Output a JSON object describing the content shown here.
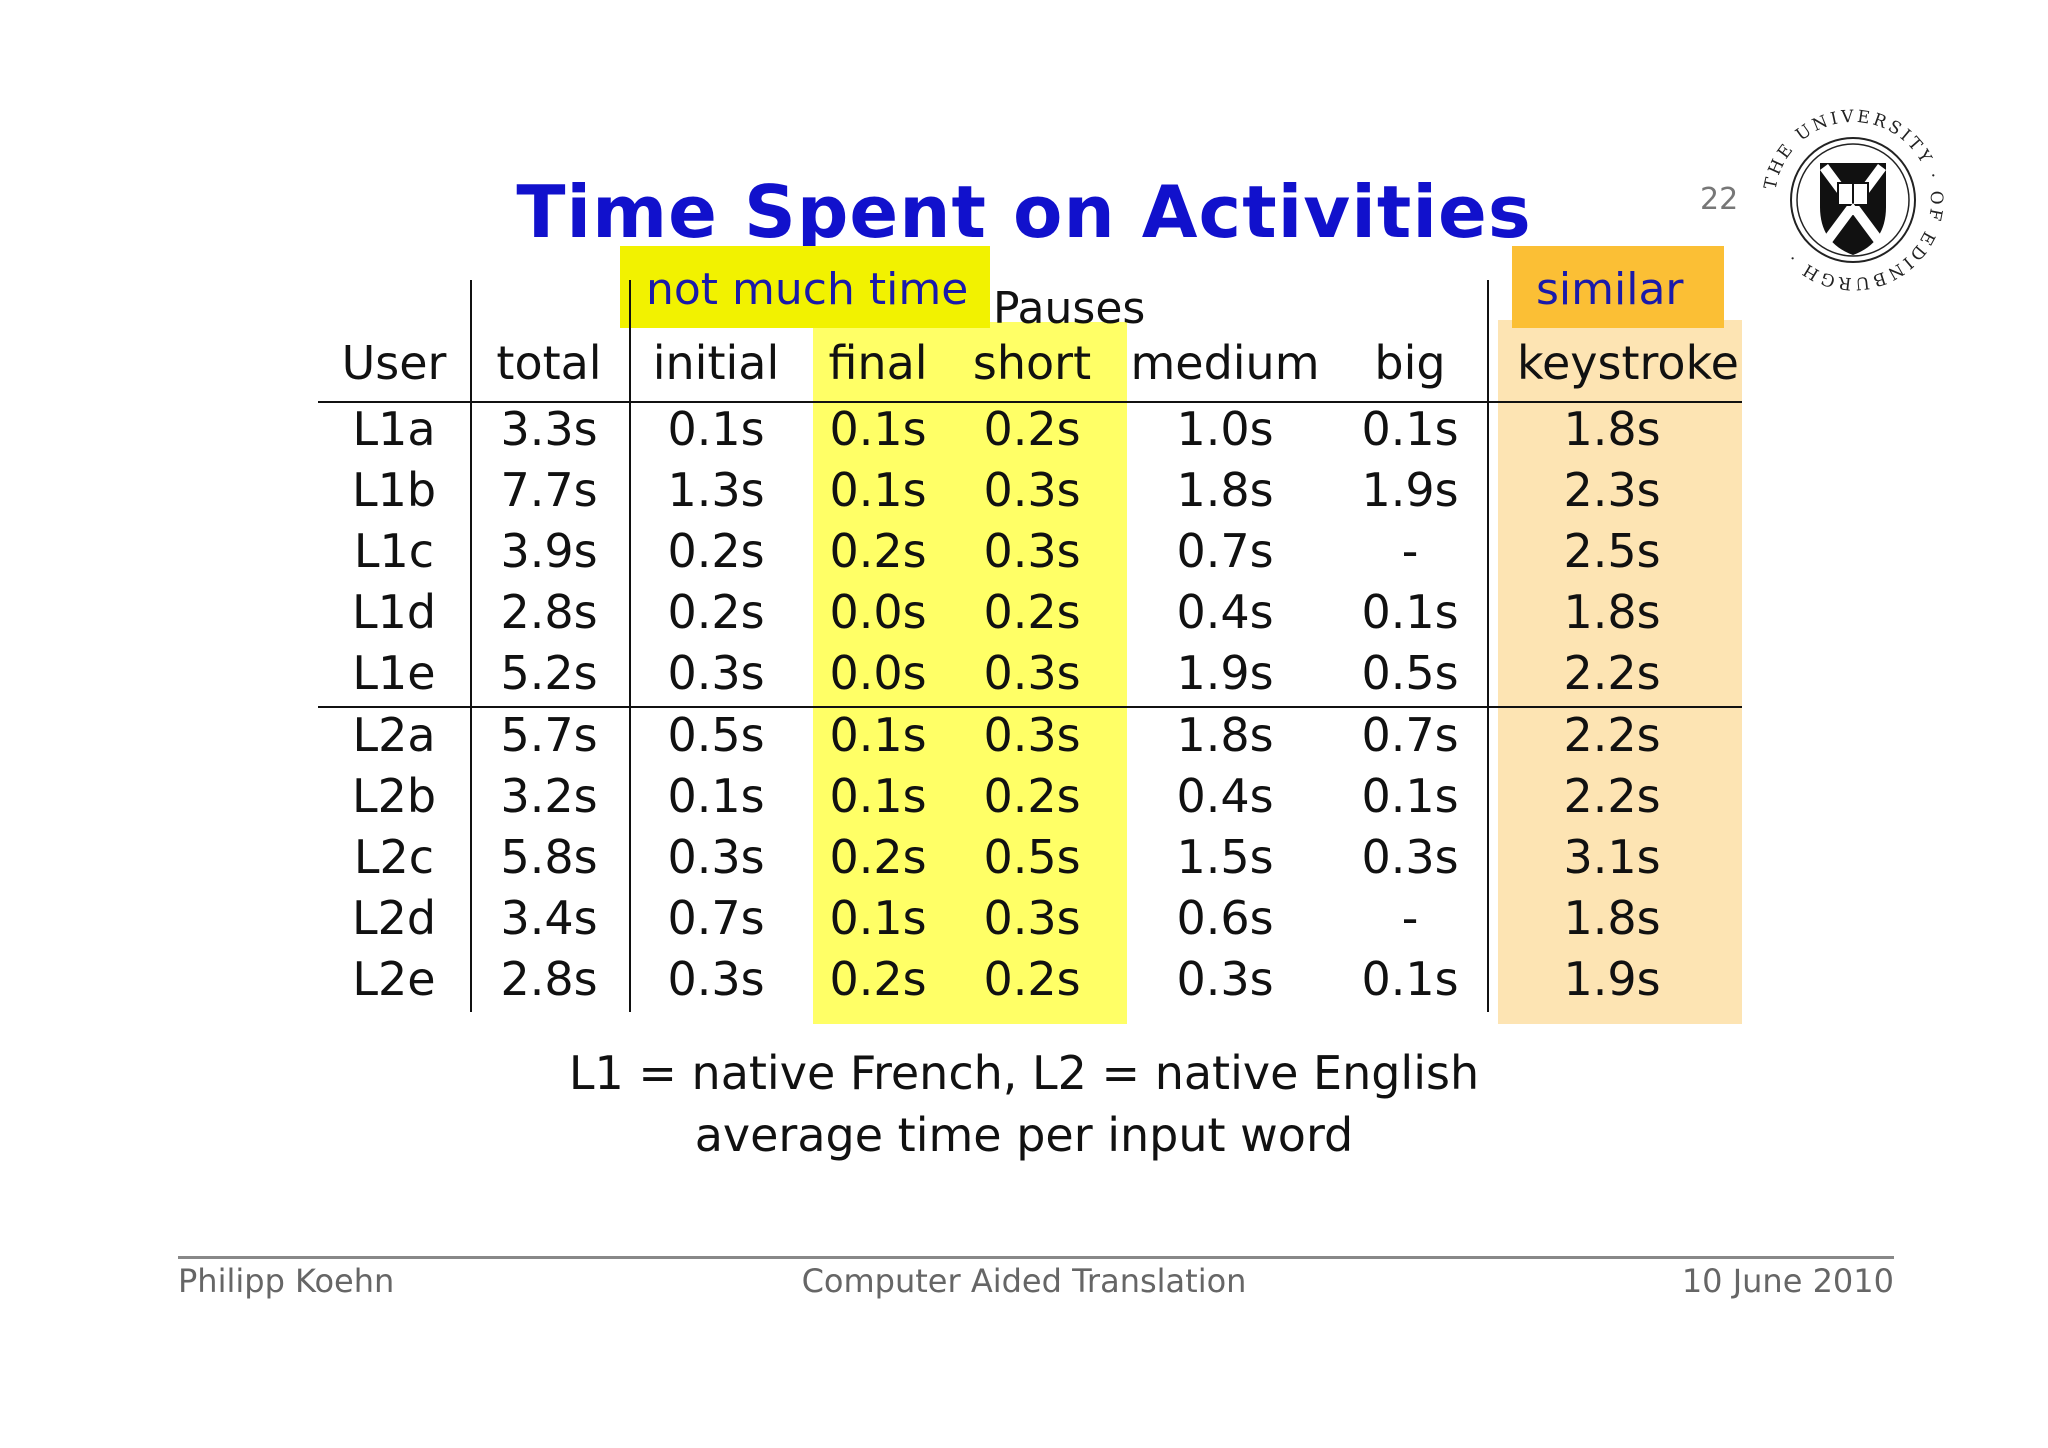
{
  "slide": {
    "title": "Time Spent on Activities",
    "number": "22"
  },
  "callouts": {
    "left": "not much time",
    "right": "similar"
  },
  "table": {
    "group_label": "Pauses",
    "columns": [
      "User",
      "total",
      "initial",
      "final",
      "short",
      "medium",
      "big",
      "keystroke"
    ],
    "rows": [
      [
        "L1a",
        "3.3s",
        "0.1s",
        "0.1s",
        "0.2s",
        "1.0s",
        "0.1s",
        "1.8s"
      ],
      [
        "L1b",
        "7.7s",
        "1.3s",
        "0.1s",
        "0.3s",
        "1.8s",
        "1.9s",
        "2.3s"
      ],
      [
        "L1c",
        "3.9s",
        "0.2s",
        "0.2s",
        "0.3s",
        "0.7s",
        "-",
        "2.5s"
      ],
      [
        "L1d",
        "2.8s",
        "0.2s",
        "0.0s",
        "0.2s",
        "0.4s",
        "0.1s",
        "1.8s"
      ],
      [
        "L1e",
        "5.2s",
        "0.3s",
        "0.0s",
        "0.3s",
        "1.9s",
        "0.5s",
        "2.2s"
      ],
      [
        "L2a",
        "5.7s",
        "0.5s",
        "0.1s",
        "0.3s",
        "1.8s",
        "0.7s",
        "2.2s"
      ],
      [
        "L2b",
        "3.2s",
        "0.1s",
        "0.1s",
        "0.2s",
        "0.4s",
        "0.1s",
        "2.2s"
      ],
      [
        "L2c",
        "5.8s",
        "0.3s",
        "0.2s",
        "0.5s",
        "1.5s",
        "0.3s",
        "3.1s"
      ],
      [
        "L2d",
        "3.4s",
        "0.7s",
        "0.1s",
        "0.3s",
        "0.6s",
        "-",
        "1.8s"
      ],
      [
        "L2e",
        "2.8s",
        "0.3s",
        "0.2s",
        "0.2s",
        "0.3s",
        "0.1s",
        "1.9s"
      ]
    ]
  },
  "caption": {
    "line1": "L1 = native French, L2 = native English",
    "line2": "average time per input word"
  },
  "footer": {
    "left": "Philipp Koehn",
    "center": "Computer Aided Translation",
    "right": "10 June 2010"
  },
  "logo": {
    "icon": "university-of-edinburgh-seal",
    "text": "THE UNIVERSITY OF EDINBURGH"
  },
  "colors": {
    "title": "#1111cc",
    "highlight_yellow": "#ffff66",
    "highlight_orange": "#fde4b3",
    "callout_yellow": "#f2f200",
    "callout_orange": "#fbbf35"
  }
}
